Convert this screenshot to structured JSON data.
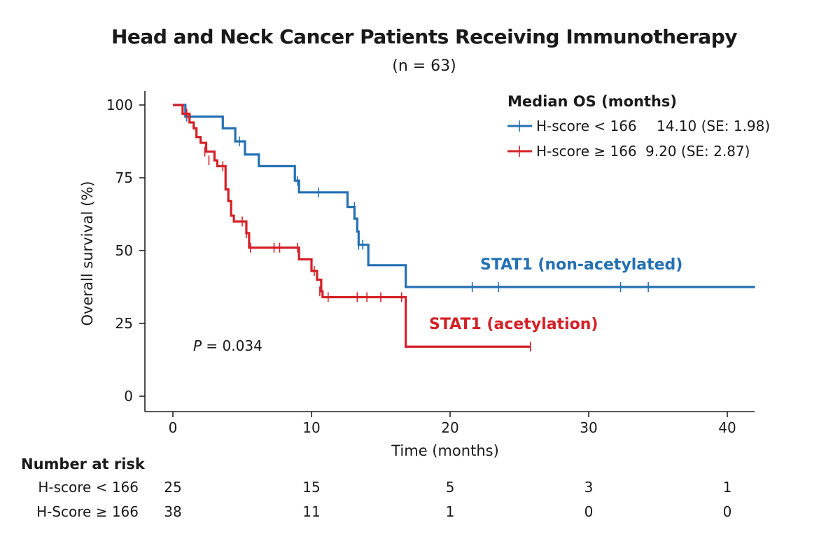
{
  "title": "Head and Neck Cancer Patients Receiving Immunotherapy",
  "subtitle": "(n = 63)",
  "chart_data": {
    "type": "line",
    "subtype": "kaplan-meier",
    "xlabel": "Time (months)",
    "ylabel": "Overall survival (%)",
    "xlim": [
      -1,
      42
    ],
    "ylim": [
      0,
      100
    ],
    "xticks": [
      0,
      10,
      20,
      30,
      40
    ],
    "yticks": [
      0,
      25,
      50,
      75,
      100
    ],
    "grid": false,
    "legend": {
      "title": "Median OS (months)",
      "position": "top-right",
      "entries": [
        {
          "label": "H-score < 166",
          "value": "14.10 (SE: 1.98)",
          "color": "#2470b3"
        },
        {
          "label": "H-score ≥ 166",
          "value": "9.20 (SE: 2.87)",
          "color": "#d42027"
        }
      ]
    },
    "annotations": [
      {
        "text": "STAT1 (non-acetylated)",
        "color": "#2470b3"
      },
      {
        "text": "STAT1 (acetylation)",
        "color": "#d42027"
      },
      {
        "text_italic": "P",
        "text": " = 0.034",
        "color": "#1a1a1a"
      }
    ],
    "series": [
      {
        "name": "H-score < 166",
        "color": "#2470b3",
        "steps": [
          [
            0,
            100
          ],
          [
            0.9,
            96
          ],
          [
            3.6,
            92
          ],
          [
            4.5,
            87.5
          ],
          [
            5.2,
            83
          ],
          [
            6.2,
            79
          ],
          [
            8.8,
            74
          ],
          [
            9.1,
            70
          ],
          [
            12.6,
            65
          ],
          [
            13.1,
            61
          ],
          [
            13.3,
            56.5
          ],
          [
            13.4,
            52
          ],
          [
            14.1,
            45
          ],
          [
            16.8,
            37.5
          ],
          [
            42,
            37.5
          ]
        ],
        "censored": [
          [
            1.0,
            96
          ],
          [
            4.8,
            87.5
          ],
          [
            9.0,
            74
          ],
          [
            10.5,
            70
          ],
          [
            13.1,
            65
          ],
          [
            13.4,
            52
          ],
          [
            13.7,
            52
          ],
          [
            21.6,
            37.5
          ],
          [
            23.5,
            37.5
          ],
          [
            32.3,
            37.5
          ],
          [
            34.3,
            37.5
          ]
        ]
      },
      {
        "name": "H-score ≥ 166",
        "color": "#d42027",
        "steps": [
          [
            0,
            100
          ],
          [
            0.7,
            97
          ],
          [
            1.2,
            94
          ],
          [
            1.5,
            92
          ],
          [
            1.7,
            89
          ],
          [
            2.0,
            87
          ],
          [
            2.4,
            84
          ],
          [
            3.0,
            81
          ],
          [
            3.2,
            79
          ],
          [
            3.8,
            71
          ],
          [
            4.0,
            67
          ],
          [
            4.2,
            62
          ],
          [
            4.4,
            60
          ],
          [
            5.3,
            56
          ],
          [
            5.5,
            51
          ],
          [
            9.1,
            47
          ],
          [
            10.0,
            43
          ],
          [
            10.4,
            40
          ],
          [
            10.7,
            36
          ],
          [
            10.8,
            34
          ],
          [
            16.8,
            34
          ],
          [
            16.8,
            17
          ],
          [
            25.8,
            17
          ]
        ],
        "censored": [
          [
            1.0,
            97
          ],
          [
            2.3,
            84
          ],
          [
            2.6,
            81
          ],
          [
            3.6,
            79
          ],
          [
            5.0,
            60
          ],
          [
            5.3,
            56
          ],
          [
            5.6,
            51
          ],
          [
            7.3,
            51
          ],
          [
            7.7,
            51
          ],
          [
            9.0,
            51
          ],
          [
            10.2,
            43
          ],
          [
            10.6,
            36
          ],
          [
            11.2,
            34
          ],
          [
            13.3,
            34
          ],
          [
            14.0,
            34
          ],
          [
            15.0,
            34
          ],
          [
            16.5,
            34
          ],
          [
            25.8,
            17
          ]
        ]
      }
    ]
  },
  "risk_table": {
    "title": "Number at risk",
    "times": [
      0,
      10,
      20,
      30,
      40
    ],
    "rows": [
      {
        "label": "H-score < 166",
        "counts": [
          "25",
          "15",
          "5",
          "3",
          "1"
        ]
      },
      {
        "label": "H-Score ≥ 166",
        "counts": [
          "38",
          "11",
          "1",
          "0",
          "0"
        ]
      }
    ]
  }
}
